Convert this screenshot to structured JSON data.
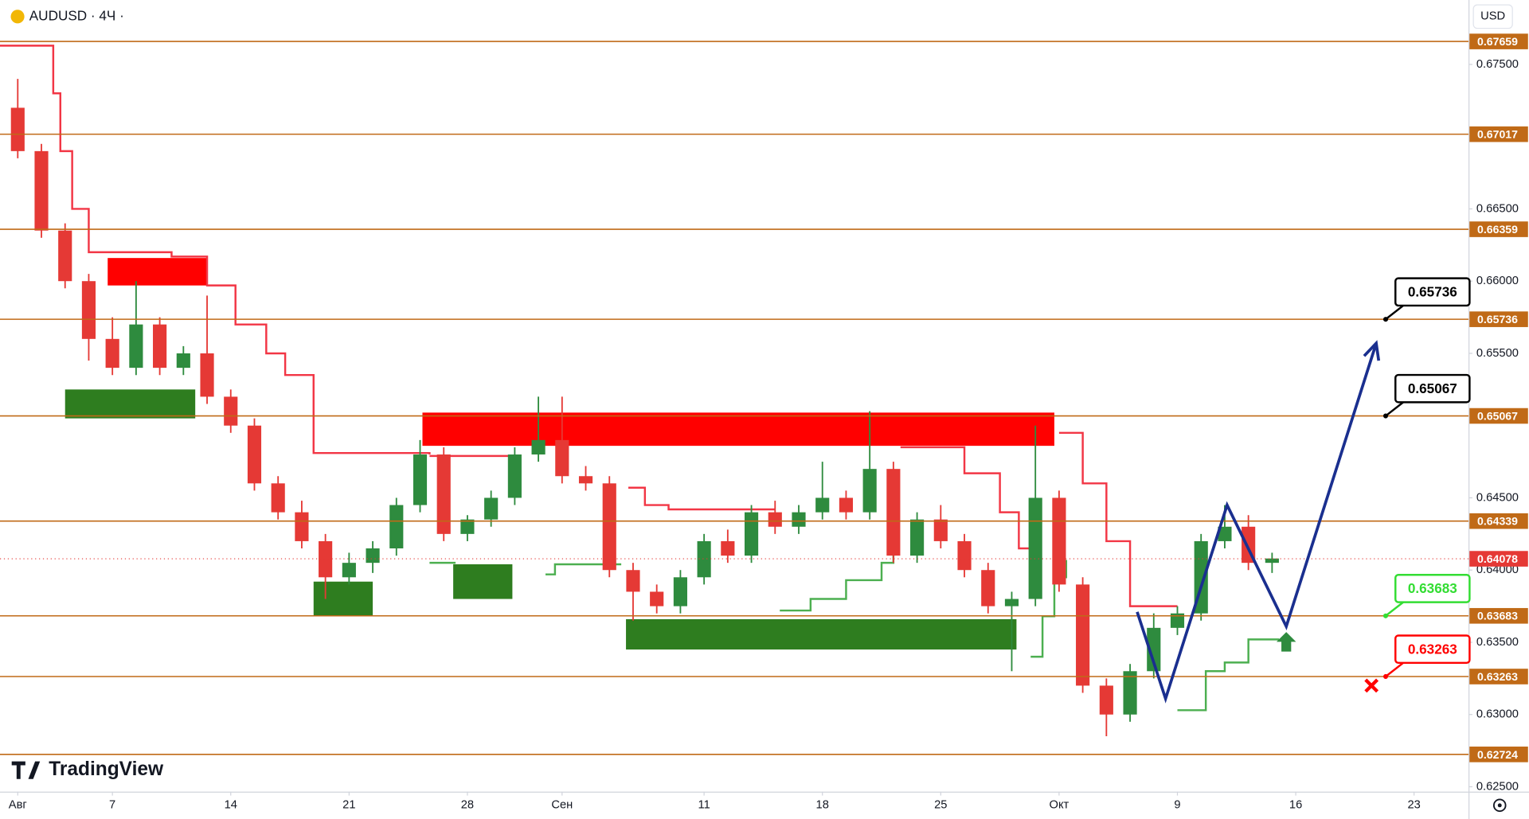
{
  "header": {
    "symbol": "AUDUSD · 4Ч ·",
    "currency": "USD",
    "brand": "TradingView"
  },
  "chart_data": {
    "type": "candlestick",
    "xlim": [
      -0.75,
      61.3
    ],
    "ylim": [
      0.62466,
      0.67946
    ],
    "xticks": [
      {
        "value": 0,
        "label": "Авг"
      },
      {
        "value": 4,
        "label": "7"
      },
      {
        "value": 9,
        "label": "14"
      },
      {
        "value": 14,
        "label": "21"
      },
      {
        "value": 19,
        "label": "28"
      },
      {
        "value": 23,
        "label": "Сен"
      },
      {
        "value": 29,
        "label": "11"
      },
      {
        "value": 34,
        "label": "18"
      },
      {
        "value": 39,
        "label": "25"
      },
      {
        "value": 44,
        "label": "Окт"
      },
      {
        "value": 49,
        "label": "9"
      },
      {
        "value": 54,
        "label": "16"
      },
      {
        "value": 59,
        "label": "23"
      }
    ],
    "yticks": [
      {
        "value": 0.675,
        "label": "0.67500"
      },
      {
        "value": 0.665,
        "label": "0.66500"
      },
      {
        "value": 0.66,
        "label": "0.66000"
      },
      {
        "value": 0.655,
        "label": "0.65500"
      },
      {
        "value": 0.645,
        "label": "0.64500"
      },
      {
        "value": 0.64,
        "label": "0.64000"
      },
      {
        "value": 0.635,
        "label": "0.63500"
      },
      {
        "value": 0.63,
        "label": "0.63000"
      },
      {
        "value": 0.625,
        "label": "0.62500"
      }
    ],
    "up_color": "#2e8b3e",
    "down_color": "#e53935",
    "candles": {
      "x": [
        0,
        1,
        2,
        3,
        4,
        5,
        6,
        7,
        8,
        9,
        10,
        11,
        12,
        13,
        14,
        15,
        16,
        17,
        18,
        19,
        20,
        21,
        22,
        23,
        24,
        25,
        26,
        27,
        28,
        29,
        30,
        31,
        32,
        33,
        34,
        35,
        36,
        37,
        38,
        39,
        40,
        41,
        42,
        43,
        44,
        45,
        46,
        47,
        48,
        49,
        50,
        51,
        52,
        53
      ],
      "open": [
        0.672,
        0.669,
        0.6635,
        0.66,
        0.656,
        0.654,
        0.657,
        0.654,
        0.655,
        0.652,
        0.65,
        0.646,
        0.644,
        0.642,
        0.6395,
        0.6405,
        0.6415,
        0.6445,
        0.648,
        0.6425,
        0.6435,
        0.645,
        0.648,
        0.649,
        0.6465,
        0.646,
        0.64,
        0.6385,
        0.6375,
        0.6395,
        0.642,
        0.641,
        0.644,
        0.643,
        0.644,
        0.645,
        0.644,
        0.647,
        0.641,
        0.6435,
        0.642,
        0.64,
        0.6375,
        0.638,
        0.645,
        0.639,
        0.632,
        0.63,
        0.633,
        0.636,
        0.637,
        0.642,
        0.643,
        0.6405
      ],
      "high": [
        0.674,
        0.6695,
        0.664,
        0.6605,
        0.6575,
        0.66,
        0.6575,
        0.6555,
        0.659,
        0.6525,
        0.6505,
        0.6465,
        0.6448,
        0.6425,
        0.6412,
        0.642,
        0.645,
        0.649,
        0.6485,
        0.6438,
        0.6455,
        0.6485,
        0.652,
        0.652,
        0.6472,
        0.6465,
        0.6405,
        0.639,
        0.64,
        0.6425,
        0.6428,
        0.6445,
        0.6448,
        0.6445,
        0.6475,
        0.6455,
        0.651,
        0.6475,
        0.644,
        0.6445,
        0.6425,
        0.6405,
        0.6385,
        0.65,
        0.6455,
        0.6395,
        0.6325,
        0.6335,
        0.637,
        0.6375,
        0.6425,
        0.6445,
        0.6438,
        0.6412
      ],
      "low": [
        0.6685,
        0.663,
        0.6595,
        0.6545,
        0.6535,
        0.6535,
        0.6535,
        0.6535,
        0.6515,
        0.6495,
        0.6455,
        0.6435,
        0.6415,
        0.638,
        0.639,
        0.6398,
        0.641,
        0.644,
        0.642,
        0.642,
        0.643,
        0.6445,
        0.6475,
        0.646,
        0.6455,
        0.6395,
        0.6365,
        0.637,
        0.637,
        0.639,
        0.6405,
        0.6405,
        0.6425,
        0.6425,
        0.6435,
        0.6435,
        0.6435,
        0.6405,
        0.6405,
        0.6415,
        0.6395,
        0.637,
        0.633,
        0.6375,
        0.6385,
        0.6315,
        0.6285,
        0.6295,
        0.6325,
        0.6355,
        0.6365,
        0.6415,
        0.64,
        0.6398
      ],
      "close": [
        0.669,
        0.6635,
        0.66,
        0.656,
        0.654,
        0.657,
        0.654,
        0.655,
        0.652,
        0.65,
        0.646,
        0.644,
        0.642,
        0.6395,
        0.6405,
        0.6415,
        0.6445,
        0.648,
        0.6425,
        0.6435,
        0.645,
        0.648,
        0.649,
        0.6465,
        0.646,
        0.64,
        0.6385,
        0.6375,
        0.6395,
        0.642,
        0.641,
        0.644,
        0.643,
        0.644,
        0.645,
        0.644,
        0.647,
        0.641,
        0.6435,
        0.642,
        0.64,
        0.6375,
        0.638,
        0.645,
        0.639,
        0.632,
        0.63,
        0.633,
        0.636,
        0.637,
        0.642,
        0.643,
        0.6405,
        0.6408
      ]
    },
    "levels": {
      "color": "#c06a17",
      "values": [
        0.67659,
        0.67017,
        0.66359,
        0.65736,
        0.65067,
        0.64339,
        0.63683,
        0.63263,
        0.62724
      ]
    },
    "last_price": {
      "value": 0.64078,
      "color": "#e53935"
    },
    "zones": [
      {
        "color": "#ff0000",
        "x": [
          3.8,
          8.0
        ],
        "y": [
          0.6597,
          0.6616
        ]
      },
      {
        "color": "#ff0000",
        "x": [
          17.1,
          43.8
        ],
        "y": [
          0.6486,
          0.6509
        ]
      },
      {
        "color": "#2e7d1f",
        "x": [
          2.0,
          7.5
        ],
        "y": [
          0.6505,
          0.6525
        ]
      },
      {
        "color": "#2e7d1f",
        "x": [
          12.5,
          15.0
        ],
        "y": [
          0.6368,
          0.6392
        ]
      },
      {
        "color": "#2e7d1f",
        "x": [
          18.4,
          20.9
        ],
        "y": [
          0.638,
          0.6404
        ]
      },
      {
        "color": "#2e7d1f",
        "x": [
          25.7,
          42.2
        ],
        "y": [
          0.6345,
          0.6366
        ]
      }
    ],
    "trend_lines": [
      {
        "color": "#f23645",
        "x": [
          -0.75,
          1.5,
          1.8,
          2.3,
          3,
          6.5,
          8,
          9.2,
          10.5,
          11.3,
          12.5,
          17.4,
          null,
          17.4,
          21,
          null,
          25.8,
          26.5,
          27.5,
          32,
          null,
          37.3,
          40,
          41.5,
          42.3,
          43,
          null,
          44,
          45,
          46,
          47,
          49
        ],
        "values": [
          0.6763,
          0.673,
          0.669,
          0.665,
          0.662,
          0.6617,
          0.6597,
          0.657,
          0.655,
          0.6535,
          0.6481,
          0.648,
          null,
          0.6479,
          0.6479,
          null,
          0.6457,
          0.6445,
          0.6442,
          0.6442,
          null,
          0.6485,
          0.6467,
          0.644,
          0.6415,
          0.641,
          null,
          0.6495,
          0.646,
          0.642,
          0.6375,
          0.6375
        ]
      },
      {
        "color": "#4caf50",
        "x": [
          17.4,
          18.5,
          null,
          22.3,
          22.7,
          25.5,
          null,
          32.2,
          33.5,
          35,
          36.5,
          37,
          null,
          42.8,
          43.3,
          43.8,
          44.3,
          null,
          49,
          50,
          50.2,
          51,
          52,
          53.3
        ],
        "values": [
          0.6405,
          0.6405,
          null,
          0.6397,
          0.6404,
          0.6404,
          null,
          0.6372,
          0.638,
          0.6393,
          0.6405,
          0.6432,
          null,
          0.634,
          0.6368,
          0.6395,
          0.6407,
          null,
          0.6303,
          0.6303,
          0.633,
          0.6336,
          0.6352,
          0.6352
        ]
      }
    ],
    "projection": {
      "color": "#1a2f8f",
      "x": [
        47.3,
        48.5,
        51.1,
        53.6,
        57.4
      ],
      "values": [
        0.6371,
        0.6311,
        0.6445,
        0.6361,
        0.6557
      ]
    },
    "callouts": [
      {
        "value": 0.65736,
        "x": 57.8,
        "color": "#000000"
      },
      {
        "value": 0.65067,
        "x": 57.8,
        "color": "#000000"
      },
      {
        "value": 0.63683,
        "x": 57.8,
        "color": "#33dd33"
      },
      {
        "value": 0.63263,
        "x": 57.8,
        "color": "#ff0000"
      }
    ],
    "markers": [
      {
        "shape": "arrow-up",
        "x": 53.6,
        "y": 0.6349,
        "color": "#2e8b3e"
      },
      {
        "shape": "cross",
        "x": 57.2,
        "y": 0.632,
        "color": "#ff0000"
      }
    ]
  }
}
